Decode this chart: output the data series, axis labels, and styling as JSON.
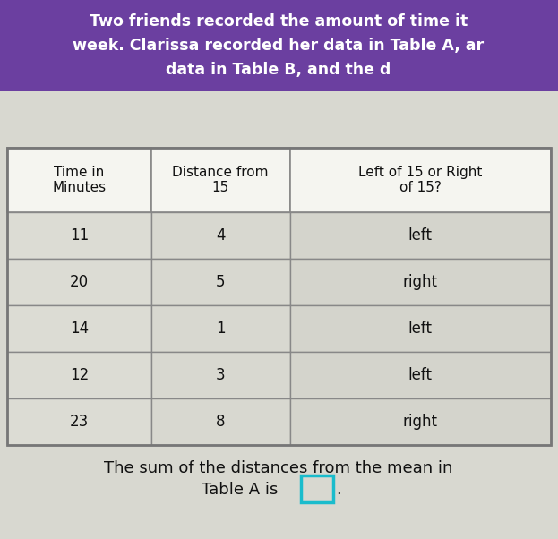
{
  "header_bg": "#6B3FA0",
  "header_text_color": "#FFFFFF",
  "header_lines": [
    "Two friends recorded the amount of time it",
    "week. Clarissa recorded her data in Table A, ar",
    "data in Table B, and the d"
  ],
  "col_headers": [
    "Time in\nMinutes",
    "Distance from\n15",
    "Left of 15 or Right\nof 15?"
  ],
  "rows": [
    [
      "11",
      "4",
      "left"
    ],
    [
      "20",
      "5",
      "right"
    ],
    [
      "14",
      "1",
      "left"
    ],
    [
      "12",
      "3",
      "left"
    ],
    [
      "23",
      "8",
      "right"
    ]
  ],
  "footer_line1": "The sum of the distances from the mean in",
  "footer_line2": "Table A is",
  "table_outer_border": "#777777",
  "table_inner_border": "#888888",
  "col_header_bg": "#F5F5F0",
  "cell_col0_bg": "#DCDCD4",
  "cell_col1_bg": "#D8D8D0",
  "cell_col2_bg": "#D4D4CC",
  "body_text_color": "#111111",
  "answer_box_color": "#1ABCCC",
  "fig_bg": "#D8D8D0"
}
